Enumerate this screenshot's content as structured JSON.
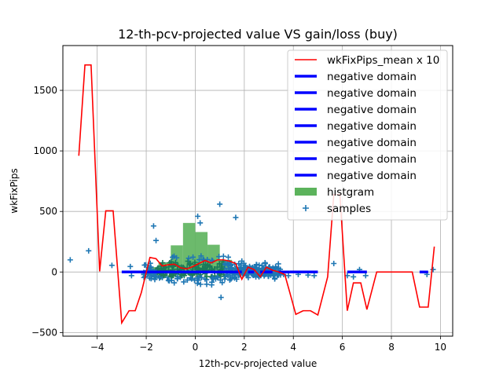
{
  "chart_data": {
    "type": "line",
    "title": "12-th-pcv-projected value VS gain/loss (buy)",
    "xlabel": "12th-pcv-projected value",
    "ylabel": "wkFixPips",
    "xlim": [
      -5.4,
      10.5
    ],
    "ylim": [
      -530,
      1870
    ],
    "grid": true,
    "legend_position": "top-right",
    "xticks": [
      -4,
      -2,
      0,
      2,
      4,
      6,
      8,
      10
    ],
    "xtick_labels": [
      "−4",
      "−2",
      "0",
      "2",
      "4",
      "6",
      "8",
      "10"
    ],
    "yticks": [
      -500,
      0,
      500,
      1000,
      1500
    ],
    "ytick_labels": [
      "−500",
      "0",
      "500",
      "1000",
      "1500"
    ],
    "colors": {
      "mean": "#ff0000",
      "negative": "#0000ff",
      "hist": "#5cb35c",
      "samples": "#1f77b4",
      "samples_dense": "#1a7a5a"
    },
    "legend": [
      {
        "label": "wkFixPips_mean x 10",
        "kind": "line-red"
      },
      {
        "label": "negative domain",
        "kind": "line-blue"
      },
      {
        "label": "negative domain",
        "kind": "line-blue"
      },
      {
        "label": "negative domain",
        "kind": "line-blue"
      },
      {
        "label": "negative domain",
        "kind": "line-blue"
      },
      {
        "label": "negative domain",
        "kind": "line-blue"
      },
      {
        "label": "negative domain",
        "kind": "line-blue"
      },
      {
        "label": "negative domain",
        "kind": "line-blue"
      },
      {
        "label": "histgram",
        "kind": "bar"
      },
      {
        "label": "samples",
        "kind": "plus"
      }
    ],
    "mean_line": {
      "name": "wkFixPips_mean x 10",
      "x": [
        -4.75,
        -4.5,
        -4.25,
        -3.9,
        -3.65,
        -3.35,
        -3.0,
        -2.7,
        -2.45,
        -2.2,
        -1.85,
        -1.6,
        -1.35,
        -1.1,
        -0.85,
        -0.6,
        -0.35,
        -0.1,
        0.15,
        0.4,
        0.65,
        0.9,
        1.15,
        1.4,
        1.65,
        1.9,
        2.15,
        2.4,
        2.65,
        2.9,
        3.15,
        3.4,
        3.65,
        3.85,
        4.1,
        4.4,
        4.7,
        5.0,
        5.4,
        5.65,
        5.9,
        6.2,
        6.45,
        6.75,
        7.0,
        7.4,
        8.0,
        8.4,
        8.85,
        9.15,
        9.5,
        9.75
      ],
      "y": [
        960,
        1710,
        1710,
        5,
        505,
        505,
        -420,
        -320,
        -320,
        -170,
        120,
        110,
        50,
        60,
        65,
        35,
        25,
        45,
        70,
        95,
        75,
        100,
        100,
        90,
        70,
        -60,
        40,
        20,
        -40,
        40,
        15,
        0,
        -20,
        -165,
        -350,
        -320,
        -320,
        -355,
        -40,
        640,
        640,
        -320,
        -90,
        -90,
        -310,
        0,
        0,
        0,
        0,
        -290,
        -290,
        210
      ]
    },
    "negative_domains": [
      {
        "x": [
          -3.0,
          1.9
        ],
        "y": 0
      },
      {
        "x": [
          2.15,
          2.4
        ],
        "y": 0
      },
      {
        "x": [
          2.65,
          3.15
        ],
        "y": 0
      },
      {
        "x": [
          3.4,
          3.85
        ],
        "y": 0
      },
      {
        "x": [
          3.85,
          5.0
        ],
        "y": 0
      },
      {
        "x": [
          6.2,
          7.0
        ],
        "y": 0
      },
      {
        "x": [
          9.15,
          9.5
        ],
        "y": 0
      }
    ],
    "histogram": {
      "name": "histgram",
      "bins": [
        {
          "x0": -2.0,
          "x1": -1.5,
          "value": 40
        },
        {
          "x0": -1.5,
          "x1": -1.0,
          "value": 80
        },
        {
          "x0": -1.0,
          "x1": -0.5,
          "value": 220
        },
        {
          "x0": -0.5,
          "x1": 0.0,
          "value": 405
        },
        {
          "x0": 0.0,
          "x1": 0.5,
          "value": 330
        },
        {
          "x0": 0.5,
          "x1": 1.0,
          "value": 225
        },
        {
          "x0": 1.0,
          "x1": 1.5,
          "value": 100
        },
        {
          "x0": 1.5,
          "x1": 2.0,
          "value": 40
        }
      ]
    },
    "samples": {
      "name": "samples",
      "outliers": [
        [
          -5.1,
          100
        ],
        [
          -4.35,
          175
        ],
        [
          -3.4,
          55
        ],
        [
          -2.65,
          45
        ],
        [
          -2.6,
          -30
        ],
        [
          -1.7,
          380
        ],
        [
          -1.6,
          260
        ],
        [
          -1.8,
          -55
        ],
        [
          0.1,
          460
        ],
        [
          0.2,
          405
        ],
        [
          1.0,
          560
        ],
        [
          1.05,
          -210
        ],
        [
          1.15,
          130
        ],
        [
          1.65,
          450
        ],
        [
          1.9,
          90
        ],
        [
          2.0,
          40
        ],
        [
          2.3,
          20
        ],
        [
          2.6,
          -40
        ],
        [
          3.0,
          40
        ],
        [
          3.4,
          30
        ],
        [
          3.6,
          -20
        ],
        [
          3.8,
          -30
        ],
        [
          4.2,
          -20
        ],
        [
          4.6,
          -25
        ],
        [
          4.85,
          -30
        ],
        [
          5.65,
          70
        ],
        [
          6.2,
          -30
        ],
        [
          6.45,
          -40
        ],
        [
          6.7,
          20
        ],
        [
          6.95,
          -30
        ],
        [
          9.45,
          -20
        ],
        [
          9.7,
          20
        ]
      ],
      "dense_band": {
        "x": [
          -2.1,
          3.5
        ],
        "y": [
          -130,
          160
        ],
        "count": 420
      }
    }
  }
}
